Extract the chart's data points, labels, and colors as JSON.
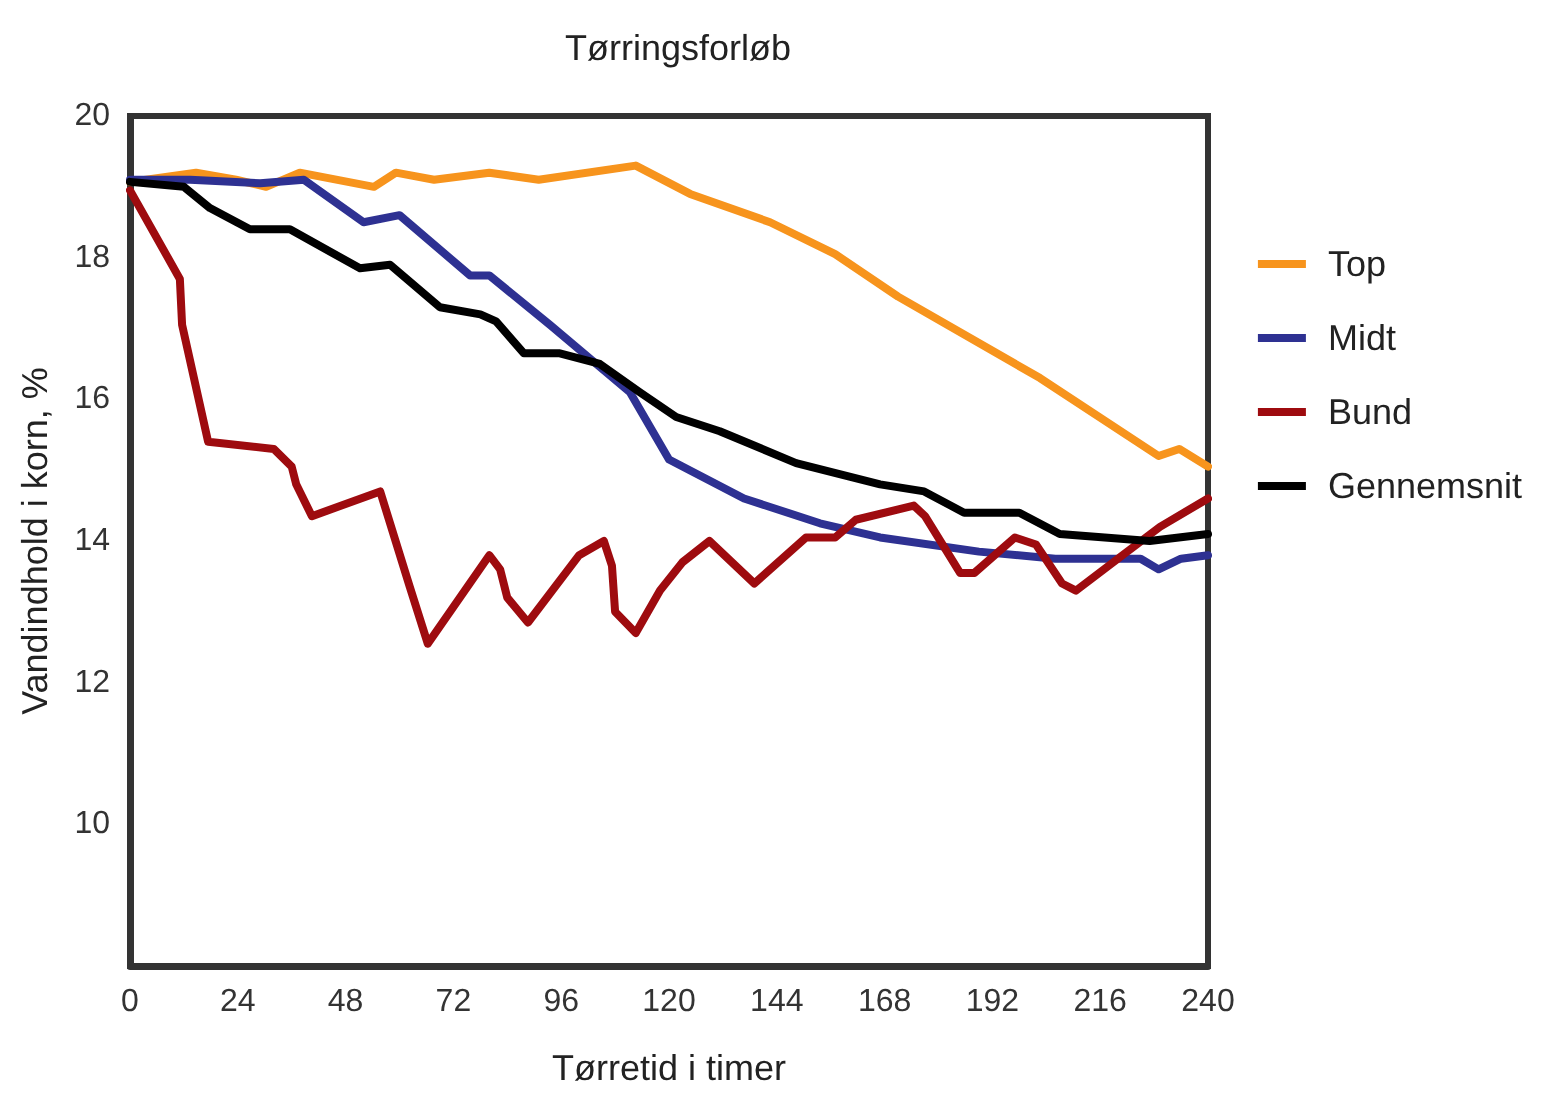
{
  "chart_data": {
    "type": "line",
    "title": "Tørringsforløb",
    "xlabel": "Tørretid i timer",
    "ylabel": "Vandindhold i korn, %",
    "xlim": [
      0,
      240
    ],
    "xticks": [
      0,
      24,
      48,
      72,
      96,
      120,
      144,
      168,
      192,
      216,
      240
    ],
    "ylim": [
      8,
      20
    ],
    "yticks": [
      10,
      12,
      14,
      16,
      18,
      20
    ],
    "grid": false,
    "legend": "right",
    "marker": "none",
    "line_style": "solid",
    "series": [
      {
        "name": "Top",
        "color": "#f7941d",
        "x": [
          0,
          14.7,
          23.6,
          30.3,
          37.8,
          54.3,
          59.2,
          67.7,
          80,
          91,
          112.6,
          124.7,
          142.5,
          157,
          171,
          202.6,
          229,
          233.6,
          240
        ],
        "values": [
          19.07,
          19.2,
          19.1,
          19.0,
          19.2,
          19.0,
          19.2,
          19.1,
          19.2,
          19.1,
          19.3,
          18.9,
          18.5,
          18.05,
          17.45,
          16.3,
          15.2,
          15.3,
          15.05
        ]
      },
      {
        "name": "Midt",
        "color": "#2e3192",
        "x": [
          0,
          13.4,
          29,
          38.7,
          52,
          60,
          75.7,
          80,
          93.5,
          111.3,
          120,
          136.7,
          153.6,
          167,
          189,
          206,
          225,
          229,
          234,
          240
        ],
        "values": [
          19.1,
          19.1,
          19.05,
          19.1,
          18.5,
          18.6,
          17.75,
          17.75,
          17.05,
          16.1,
          15.15,
          14.6,
          14.25,
          14.05,
          13.85,
          13.75,
          13.75,
          13.6,
          13.75,
          13.8
        ]
      },
      {
        "name": "Bund",
        "color": "#9e0b0f",
        "x": [
          0,
          11.1,
          11.6,
          17.4,
          32,
          36,
          37,
          40.5,
          55.7,
          62.3,
          66.3,
          80,
          82.4,
          84,
          88.6,
          100,
          105.5,
          107.3,
          108,
          112.6,
          118,
          123,
          129,
          139,
          150.5,
          157,
          161.6,
          174.5,
          177,
          184.8,
          188,
          197,
          201.7,
          207.5,
          210.6,
          221,
          229.3,
          240
        ],
        "values": [
          18.95,
          17.7,
          17.05,
          15.4,
          15.3,
          15.05,
          14.8,
          14.35,
          14.7,
          13.35,
          12.55,
          13.8,
          13.6,
          13.2,
          12.85,
          13.8,
          14.0,
          13.65,
          13.0,
          12.7,
          13.3,
          13.7,
          14.0,
          13.4,
          14.05,
          14.05,
          14.3,
          14.5,
          14.35,
          13.55,
          13.55,
          14.05,
          13.95,
          13.4,
          13.3,
          13.8,
          14.2,
          14.6
        ]
      },
      {
        "name": "Gennemsnit",
        "color": "#000000",
        "x": [
          0,
          12,
          17.8,
          26.7,
          35.6,
          51.2,
          57.9,
          69,
          78,
          81.5,
          87.7,
          95.7,
          104.6,
          113.5,
          121.6,
          131.3,
          148.3,
          167,
          176.8,
          185.7,
          198,
          207,
          227,
          240
        ],
        "values": [
          19.07,
          19.0,
          18.7,
          18.4,
          18.4,
          17.85,
          17.9,
          17.3,
          17.2,
          17.1,
          16.65,
          16.65,
          16.5,
          16.1,
          15.75,
          15.55,
          15.1,
          14.8,
          14.7,
          14.4,
          14.4,
          14.1,
          14.0,
          14.1
        ]
      }
    ]
  }
}
